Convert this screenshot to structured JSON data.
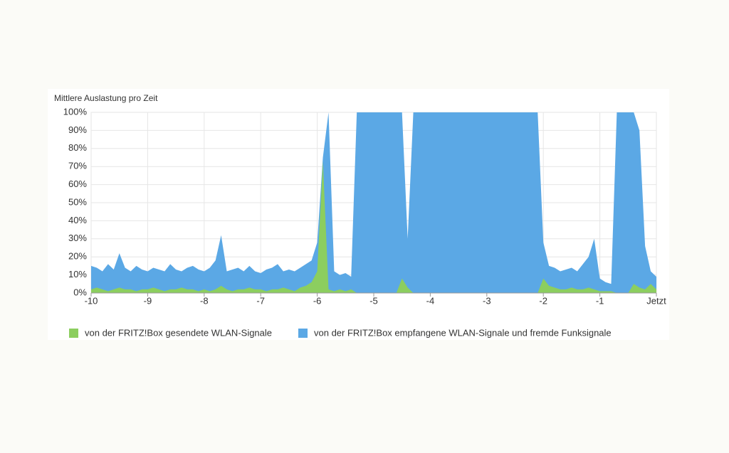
{
  "chart_data": {
    "type": "area",
    "title": "Mittlere Auslastung pro Zeit",
    "x": [
      -10,
      -9.9,
      -9.8,
      -9.7,
      -9.6,
      -9.5,
      -9.4,
      -9.3,
      -9.2,
      -9.1,
      -9,
      -8.9,
      -8.8,
      -8.7,
      -8.6,
      -8.5,
      -8.4,
      -8.3,
      -8.2,
      -8.1,
      -8,
      -7.9,
      -7.8,
      -7.7,
      -7.6,
      -7.5,
      -7.4,
      -7.3,
      -7.2,
      -7.1,
      -7,
      -6.9,
      -6.8,
      -6.7,
      -6.6,
      -6.5,
      -6.4,
      -6.3,
      -6.2,
      -6.1,
      -6,
      -5.9,
      -5.8,
      -5.7,
      -5.6,
      -5.5,
      -5.4,
      -5.3,
      -5.2,
      -5.1,
      -5,
      -4.9,
      -4.8,
      -4.7,
      -4.6,
      -4.5,
      -4.4,
      -4.3,
      -4.2,
      -4.1,
      -4,
      -3.9,
      -3.8,
      -3.7,
      -3.6,
      -3.5,
      -3.4,
      -3.3,
      -3.2,
      -3.1,
      -3,
      -2.9,
      -2.8,
      -2.7,
      -2.6,
      -2.5,
      -2.4,
      -2.3,
      -2.2,
      -2.1,
      -2,
      -1.9,
      -1.8,
      -1.7,
      -1.6,
      -1.5,
      -1.4,
      -1.3,
      -1.2,
      -1.1,
      -1,
      -0.9,
      -0.8,
      -0.7,
      -0.6,
      -0.5,
      -0.4,
      -0.3,
      -0.2,
      -0.1,
      0
    ],
    "series": [
      {
        "name": "von der FRITZ!Box empfangene WLAN-Signale und fremde Funksignale",
        "color": "#5ba8e5",
        "values": [
          15,
          14,
          12,
          16,
          13,
          22,
          14,
          12,
          15,
          13,
          12,
          14,
          13,
          12,
          16,
          13,
          12,
          14,
          15,
          13,
          12,
          14,
          18,
          32,
          12,
          13,
          14,
          12,
          15,
          12,
          11,
          13,
          14,
          16,
          12,
          13,
          12,
          14,
          16,
          18,
          28,
          75,
          100,
          12,
          10,
          11,
          9,
          100,
          100,
          100,
          100,
          100,
          100,
          100,
          100,
          100,
          30,
          100,
          100,
          100,
          100,
          100,
          100,
          100,
          100,
          100,
          100,
          100,
          100,
          100,
          100,
          100,
          100,
          100,
          100,
          100,
          100,
          100,
          100,
          100,
          28,
          15,
          14,
          12,
          13,
          14,
          12,
          16,
          20,
          30,
          8,
          6,
          5,
          100,
          100,
          100,
          100,
          90,
          26,
          12,
          9
        ]
      },
      {
        "name": "von der FRITZ!Box gesendete WLAN-Signale",
        "color": "#8cce5f",
        "values": [
          2,
          3,
          2,
          1,
          2,
          3,
          2,
          2,
          1,
          2,
          2,
          3,
          2,
          1,
          2,
          2,
          3,
          2,
          2,
          1,
          2,
          1,
          2,
          4,
          2,
          1,
          2,
          2,
          3,
          2,
          2,
          1,
          2,
          2,
          3,
          2,
          1,
          3,
          4,
          6,
          12,
          73,
          2,
          1,
          2,
          1,
          2,
          0,
          0,
          0,
          0,
          0,
          0,
          0,
          0,
          8,
          3,
          0,
          0,
          0,
          0,
          0,
          0,
          0,
          0,
          0,
          0,
          0,
          0,
          0,
          0,
          0,
          0,
          0,
          0,
          0,
          0,
          0,
          0,
          0,
          8,
          4,
          3,
          2,
          2,
          3,
          2,
          2,
          3,
          2,
          1,
          1,
          1,
          0,
          0,
          0,
          5,
          3,
          2,
          5,
          2
        ]
      }
    ],
    "xlim": [
      -10,
      0
    ],
    "xticks": [
      -10,
      -9,
      -8,
      -7,
      -6,
      -5,
      -4,
      -3,
      -2,
      -1,
      {
        "value": 0,
        "label": "Jetzt"
      }
    ],
    "ylim": [
      0,
      100
    ],
    "yticks": [
      {
        "value": 0,
        "label": "0%"
      },
      {
        "value": 10,
        "label": "10%"
      },
      {
        "value": 20,
        "label": "20%"
      },
      {
        "value": 30,
        "label": "30%"
      },
      {
        "value": 40,
        "label": "40%"
      },
      {
        "value": 50,
        "label": "50%"
      },
      {
        "value": 60,
        "label": "60%"
      },
      {
        "value": 70,
        "label": "70%"
      },
      {
        "value": 80,
        "label": "80%"
      },
      {
        "value": 90,
        "label": "90%"
      },
      {
        "value": 100,
        "label": "100%"
      }
    ],
    "grid": true
  }
}
